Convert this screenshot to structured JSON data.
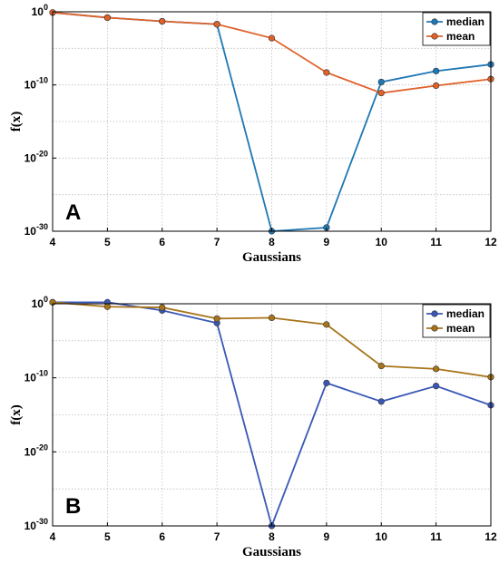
{
  "chart_data": [
    {
      "type": "line",
      "panel_label": "A",
      "xlabel": "Gaussians",
      "ylabel": "f(x)",
      "x": [
        4,
        5,
        6,
        7,
        8,
        9,
        10,
        11,
        12
      ],
      "xlim": [
        4,
        12
      ],
      "y_scale": "log",
      "ylim_exponent": [
        -30,
        0
      ],
      "y_ticks_exponent": [
        0,
        -10,
        -20,
        -30
      ],
      "grid": true,
      "legend_position": "top-right",
      "series": [
        {
          "name": "median",
          "color": "#1f77b4",
          "y_exponent": [
            -0.1,
            -0.8,
            -1.3,
            -1.7,
            -30.0,
            -29.5,
            -9.6,
            -8.1,
            -7.2
          ]
        },
        {
          "name": "mean",
          "color": "#e0622a",
          "y_exponent": [
            -0.1,
            -0.8,
            -1.3,
            -1.7,
            -3.6,
            -8.3,
            -11.1,
            -10.1,
            -9.2
          ]
        }
      ]
    },
    {
      "type": "line",
      "panel_label": "B",
      "xlabel": "Gaussians",
      "ylabel": "f(x)",
      "x": [
        4,
        5,
        6,
        7,
        8,
        9,
        10,
        11,
        12
      ],
      "xlim": [
        4,
        12
      ],
      "y_scale": "log",
      "ylim_exponent": [
        -30,
        0
      ],
      "y_ticks_exponent": [
        0,
        -10,
        -20,
        -30
      ],
      "grid": true,
      "legend_position": "top-right",
      "series": [
        {
          "name": "median",
          "color": "#3a57b5",
          "y_exponent": [
            0.2,
            0.2,
            -0.9,
            -2.6,
            -30.0,
            -10.7,
            -13.2,
            -11.1,
            -13.7
          ]
        },
        {
          "name": "mean",
          "color": "#a8741a",
          "y_exponent": [
            0.2,
            -0.4,
            -0.5,
            -2.0,
            -1.9,
            -2.8,
            -8.4,
            -8.8,
            -9.9
          ]
        }
      ]
    }
  ]
}
